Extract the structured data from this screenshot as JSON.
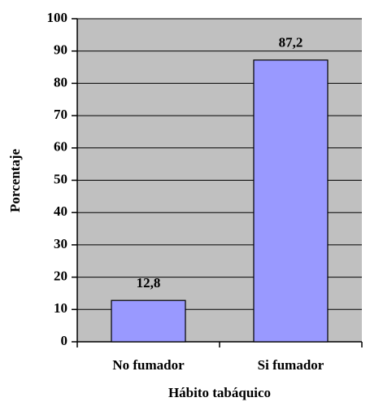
{
  "chart_data": {
    "type": "bar",
    "categories": [
      "No fumador",
      "Si fumador"
    ],
    "values": [
      12.8,
      87.2
    ],
    "value_labels": [
      "12,8",
      "87,2"
    ],
    "color": "#9999ff",
    "x_label": "Hábito tabáquico",
    "y_label": "Porcentaje",
    "ylim": [
      0,
      100
    ],
    "yticks": [
      0,
      10,
      20,
      30,
      40,
      50,
      60,
      70,
      80,
      90,
      100
    ],
    "grid": true
  }
}
